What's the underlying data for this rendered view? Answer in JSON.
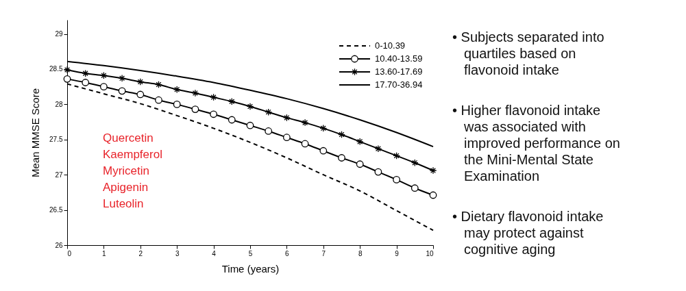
{
  "chart_data": {
    "type": "line",
    "xlabel": "Time (years)",
    "ylabel": "Mean MMSE Score",
    "xlim": [
      0,
      10
    ],
    "xticks": [
      0,
      1,
      2,
      3,
      4,
      5,
      6,
      7,
      8,
      9,
      10
    ],
    "ylim": [
      26,
      29.2
    ],
    "yticks": [
      26,
      26.5,
      27,
      27.5,
      28,
      28.5,
      29
    ],
    "grid": false,
    "legend": "top right",
    "series": [
      {
        "name": "0-10.39",
        "color": "#000000",
        "line_style": "dashed",
        "marker": "none",
        "x": [
          0,
          1,
          2,
          3,
          4,
          5,
          6,
          7,
          8,
          9,
          10
        ],
        "values": [
          28.29,
          28.15,
          28.01,
          27.84,
          27.66,
          27.46,
          27.24,
          27.0,
          26.77,
          26.49,
          26.21
        ]
      },
      {
        "name": "10.40-13.59",
        "color": "#000000",
        "line_style": "solid",
        "marker": "circle",
        "x": [
          0,
          0.5,
          1,
          1.5,
          2,
          2.5,
          3,
          3.5,
          4,
          4.5,
          5,
          5.5,
          6,
          6.5,
          7,
          7.5,
          8,
          8.5,
          9,
          9.5,
          10
        ],
        "values": [
          28.36,
          28.31,
          28.25,
          28.19,
          28.14,
          28.06,
          28.0,
          27.93,
          27.86,
          27.78,
          27.7,
          27.62,
          27.53,
          27.44,
          27.34,
          27.24,
          27.15,
          27.04,
          26.93,
          26.81,
          26.71
        ]
      },
      {
        "name": "13.60-17.69",
        "color": "#000000",
        "line_style": "solid",
        "marker": "cross",
        "x": [
          0,
          0.5,
          1,
          1.5,
          2,
          2.5,
          3,
          3.5,
          4,
          4.5,
          5,
          5.5,
          6,
          6.5,
          7,
          7.5,
          8,
          8.5,
          9,
          9.5,
          10
        ],
        "values": [
          28.49,
          28.44,
          28.41,
          28.37,
          28.32,
          28.28,
          28.21,
          28.16,
          28.1,
          28.04,
          27.97,
          27.89,
          27.81,
          27.74,
          27.66,
          27.57,
          27.47,
          27.37,
          27.27,
          27.17,
          27.06
        ]
      },
      {
        "name": "17.70-36.94",
        "color": "#000000",
        "line_style": "solid",
        "marker": "none",
        "x": [
          0,
          1,
          2,
          3,
          4,
          5,
          6,
          7,
          8,
          9,
          10
        ],
        "values": [
          28.61,
          28.55,
          28.48,
          28.4,
          28.31,
          28.2,
          28.08,
          27.94,
          27.78,
          27.6,
          27.4
        ]
      }
    ],
    "annotations": [
      "Quercetin\nKaempferol\nMyricetin\nApigenin\nLuteolin",
      "• Subjects separated into\nquartiles based on\nflavonoid intake",
      "• Higher flavonoid intake\nwas associated with\nimproved performance on\nthe Mini-Mental State\nExamination",
      "• Dietary flavonoid intake\nmay protect against\ncognitive aging"
    ]
  }
}
